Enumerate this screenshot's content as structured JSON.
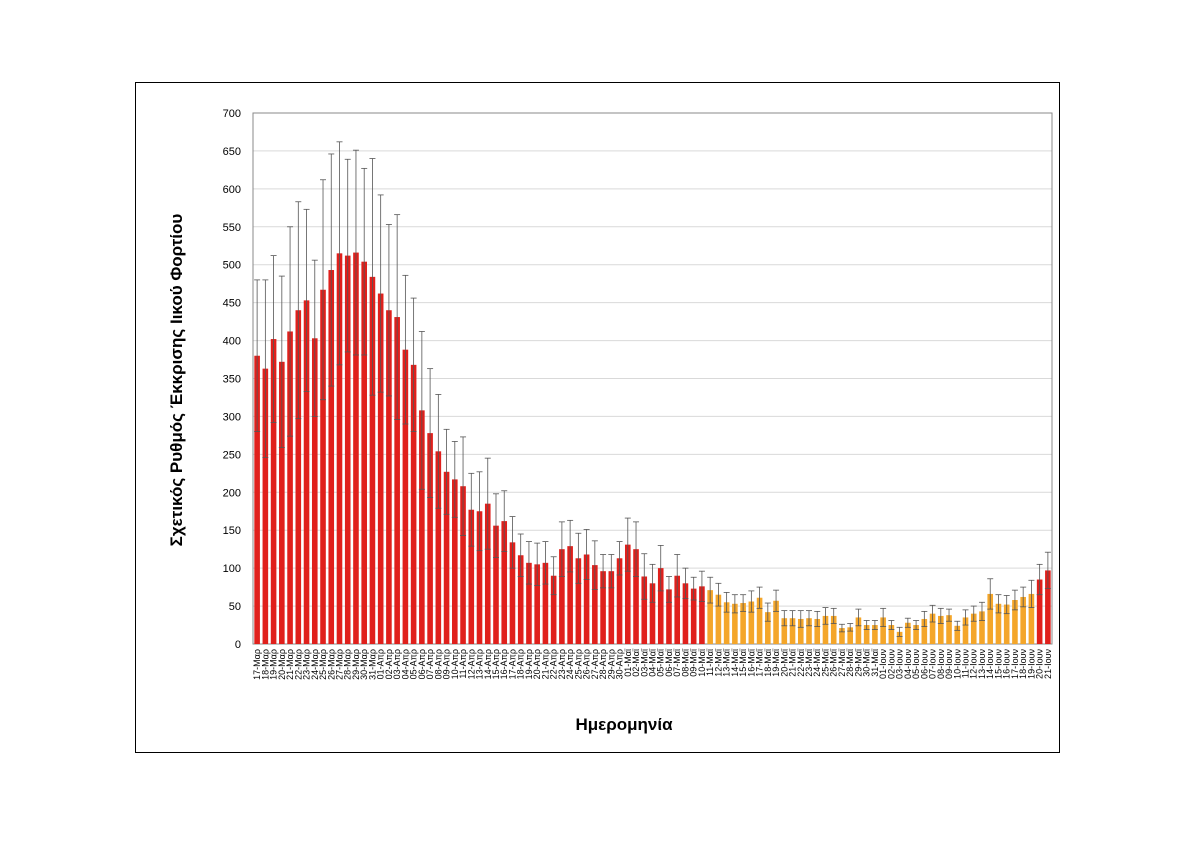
{
  "chart_data": {
    "type": "bar",
    "ylabel": "Σχετικός Ρυθμός Έκκρισης Ιικού Φορτίου",
    "xlabel": "Ημερομηνία",
    "categories": [
      "17-Μαρ",
      "18-Μαρ",
      "19-Μαρ",
      "20-Μαρ",
      "21-Μαρ",
      "22-Μαρ",
      "23-Μαρ",
      "24-Μαρ",
      "25-Μαρ",
      "26-Μαρ",
      "27-Μαρ",
      "28-Μαρ",
      "29-Μαρ",
      "30-Μαρ",
      "31-Μαρ",
      "01-Απρ",
      "02-Απρ",
      "03-Απρ",
      "04-Απρ",
      "05-Απρ",
      "06-Απρ",
      "07-Απρ",
      "08-Απρ",
      "09-Απρ",
      "10-Απρ",
      "11-Απρ",
      "12-Απρ",
      "13-Απρ",
      "14-Απρ",
      "15-Απρ",
      "16-Απρ",
      "17-Απρ",
      "18-Απρ",
      "19-Απρ",
      "20-Απρ",
      "21-Απρ",
      "22-Απρ",
      "23-Απρ",
      "24-Απρ",
      "25-Απρ",
      "26-Απρ",
      "27-Απρ",
      "28-Απρ",
      "29-Απρ",
      "30-Απρ",
      "01-Μαϊ",
      "02-Μαϊ",
      "03-Μαϊ",
      "04-Μαϊ",
      "05-Μαϊ",
      "06-Μαϊ",
      "07-Μαϊ",
      "08-Μαϊ",
      "09-Μαϊ",
      "10-Μαϊ",
      "11-Μαϊ",
      "12-Μαϊ",
      "13-Μαϊ",
      "14-Μαϊ",
      "15-Μαϊ",
      "16-Μαϊ",
      "17-Μαϊ",
      "18-Μαϊ",
      "19-Μαϊ",
      "20-Μαϊ",
      "21-Μαϊ",
      "22-Μαϊ",
      "23-Μαϊ",
      "24-Μαϊ",
      "25-Μαϊ",
      "26-Μαϊ",
      "27-Μαϊ",
      "28-Μαϊ",
      "29-Μαϊ",
      "30-Μαϊ",
      "31-Μαϊ",
      "01-Ιουν",
      "02-Ιουν",
      "03-Ιουν",
      "04-Ιουν",
      "05-Ιουν",
      "06-Ιουν",
      "07-Ιουν",
      "08-Ιουν",
      "09-Ιουν",
      "10-Ιουν",
      "11-Ιουν",
      "12-Ιουν",
      "13-Ιουν",
      "14-Ιουν",
      "15-Ιουν",
      "16-Ιουν",
      "17-Ιουν",
      "18-Ιουν",
      "19-Ιουν",
      "20-Ιουν",
      "21-Ιουν"
    ],
    "values": [
      380,
      363,
      402,
      372,
      412,
      440,
      453,
      403,
      467,
      493,
      515,
      512,
      516,
      504,
      484,
      462,
      440,
      431,
      388,
      368,
      308,
      278,
      254,
      227,
      217,
      208,
      177,
      175,
      185,
      156,
      162,
      134,
      117,
      107,
      105,
      107,
      90,
      125,
      129,
      113,
      118,
      104,
      96,
      96,
      113,
      131,
      125,
      89,
      80,
      100,
      72,
      90,
      80,
      73,
      76,
      71,
      65,
      55,
      53,
      54,
      56,
      61,
      42,
      57,
      34,
      34,
      33,
      34,
      33,
      37,
      37,
      21,
      22,
      35,
      25,
      25,
      35,
      25,
      16,
      28,
      25,
      33,
      40,
      37,
      38,
      24,
      35,
      40,
      43,
      66,
      53,
      52,
      58,
      62,
      66,
      85,
      97
    ],
    "errors": [
      100,
      117,
      110,
      113,
      138,
      143,
      120,
      103,
      145,
      153,
      147,
      127,
      135,
      123,
      156,
      130,
      113,
      135,
      98,
      88,
      104,
      85,
      75,
      56,
      50,
      65,
      48,
      52,
      60,
      42,
      40,
      34,
      28,
      28,
      28,
      28,
      25,
      36,
      34,
      33,
      33,
      32,
      22,
      22,
      22,
      35,
      36,
      30,
      25,
      30,
      17,
      28,
      20,
      15,
      20,
      17,
      15,
      13,
      12,
      11,
      14,
      14,
      12,
      14,
      10,
      10,
      11,
      10,
      10,
      11,
      10,
      5,
      5,
      11,
      6,
      6,
      12,
      6,
      6,
      6,
      6,
      10,
      11,
      10,
      8,
      6,
      10,
      10,
      12,
      20,
      12,
      12,
      13,
      13,
      18,
      20,
      24
    ],
    "colors": [
      "#e0201c",
      "#e0201c",
      "#e0201c",
      "#e0201c",
      "#e0201c",
      "#e0201c",
      "#e0201c",
      "#e0201c",
      "#e0201c",
      "#e0201c",
      "#e0201c",
      "#e0201c",
      "#e0201c",
      "#e0201c",
      "#e0201c",
      "#e0201c",
      "#e0201c",
      "#e0201c",
      "#e0201c",
      "#e0201c",
      "#e0201c",
      "#e0201c",
      "#e0201c",
      "#e0201c",
      "#e0201c",
      "#e0201c",
      "#e0201c",
      "#e0201c",
      "#e0201c",
      "#e0201c",
      "#e0201c",
      "#e0201c",
      "#e0201c",
      "#e0201c",
      "#e0201c",
      "#e0201c",
      "#e0201c",
      "#e0201c",
      "#e0201c",
      "#e0201c",
      "#e0201c",
      "#e0201c",
      "#e0201c",
      "#e0201c",
      "#e0201c",
      "#e0201c",
      "#e0201c",
      "#e0201c",
      "#e0201c",
      "#e0201c",
      "#e0201c",
      "#e0201c",
      "#e0201c",
      "#e0201c",
      "#e0201c",
      "#f4a62a",
      "#f4a62a",
      "#f4a62a",
      "#f4a62a",
      "#f4a62a",
      "#f4a62a",
      "#f4a62a",
      "#f4a62a",
      "#f4a62a",
      "#f4a62a",
      "#f4a62a",
      "#f4a62a",
      "#f4a62a",
      "#f4a62a",
      "#f4a62a",
      "#f4a62a",
      "#f4a62a",
      "#f4a62a",
      "#f4a62a",
      "#f4a62a",
      "#f4a62a",
      "#f4a62a",
      "#f4a62a",
      "#f4a62a",
      "#f4a62a",
      "#f4a62a",
      "#f4a62a",
      "#f4a62a",
      "#f4a62a",
      "#f4a62a",
      "#f4a62a",
      "#f4a62a",
      "#f4a62a",
      "#f4a62a",
      "#f4a62a",
      "#f4a62a",
      "#f4a62a",
      "#f4a62a",
      "#f4a62a",
      "#f4a62a",
      "#e0201c",
      "#e0201c"
    ],
    "ylim": [
      0,
      700
    ],
    "yticks": [
      0,
      50,
      100,
      150,
      200,
      250,
      300,
      350,
      400,
      450,
      500,
      550,
      600,
      650,
      700
    ],
    "grid": true
  }
}
